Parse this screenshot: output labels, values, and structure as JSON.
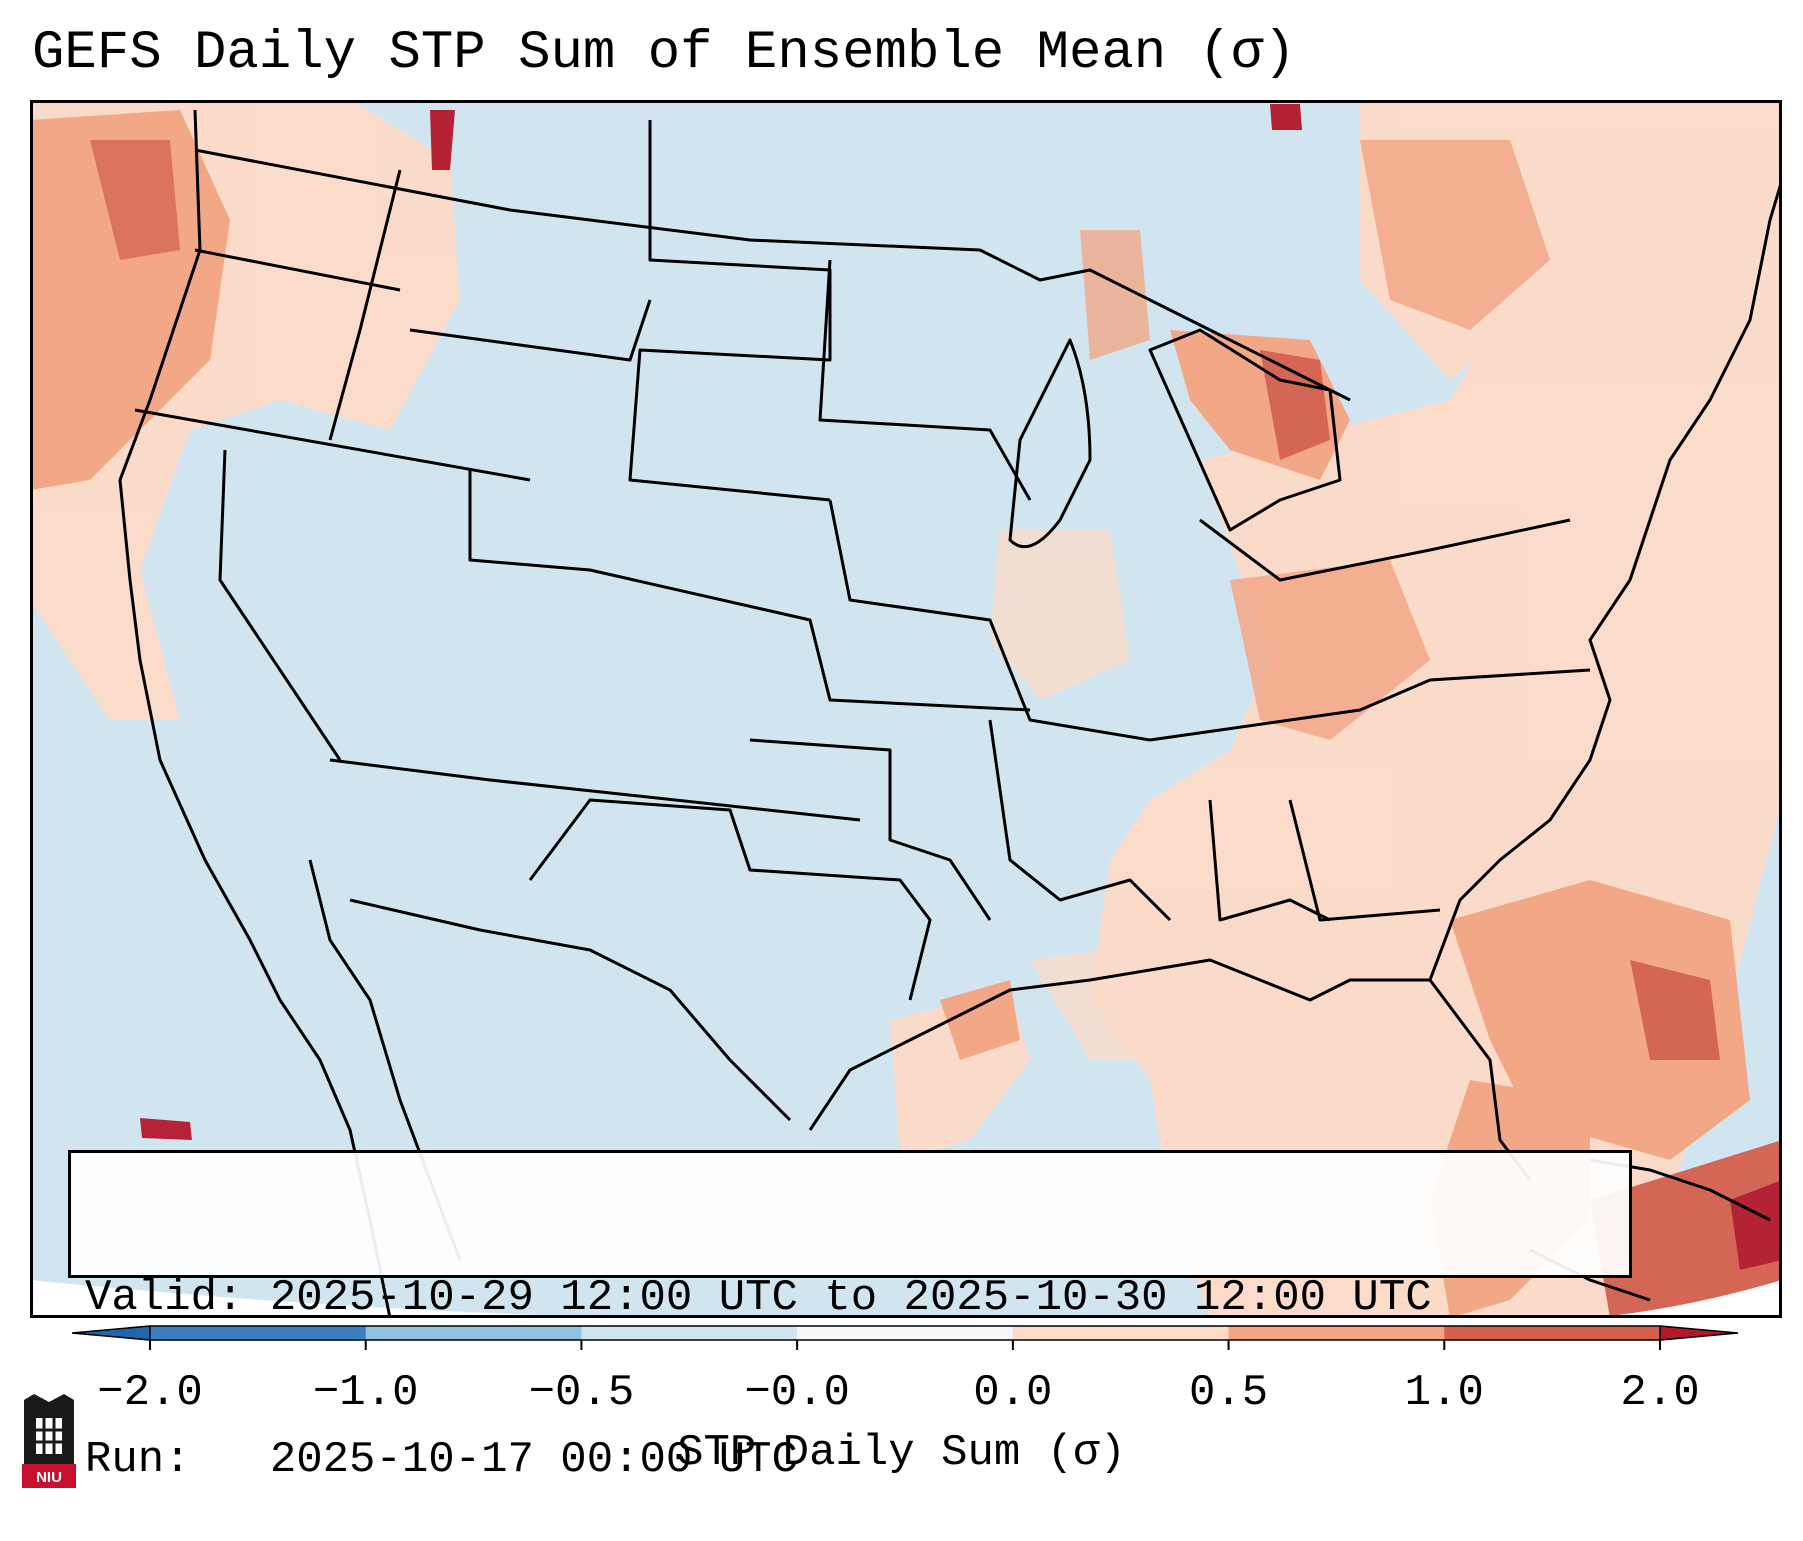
{
  "title": "GEFS Daily STP Sum of Ensemble Mean (σ)",
  "info": {
    "valid_label": "Valid:",
    "valid_value": "2025-10-29 12:00 UTC to 2025-10-30 12:00 UTC",
    "run_label": "Run:",
    "run_value": "2025-10-17 00:00 UTC"
  },
  "colorbar": {
    "label": "STP Daily Sum (σ)",
    "ticks": [
      "−2.0",
      "−1.0",
      "−0.5",
      "−0.0",
      "0.0",
      "0.5",
      "1.0",
      "2.0"
    ],
    "colors": [
      "#3a7fbf",
      "#91c2e1",
      "#d1e5f0",
      "#f7f7f7",
      "#fddbc7",
      "#f4a582",
      "#d6604d"
    ],
    "extend_low_color": "#2166ac",
    "extend_high_color": "#b2182b"
  },
  "map": {
    "background_color": "#d1e5f0",
    "projection": "Lambert Conformal - CONUS",
    "hotspots": [
      {
        "region": "Pacific Northwest coast",
        "level": "0.5 to 1.0"
      },
      {
        "region": "Great Lakes / Lower Michigan",
        "level": "0.5 to 1.0"
      },
      {
        "region": "Mid-Atlantic & Ohio Valley",
        "level": "0.0 to 0.5"
      },
      {
        "region": "Southeast US coast & Florida",
        "level": "0.5 to 1.0"
      },
      {
        "region": "Bahamas / Cuba",
        "level": "1.0 to 2.0"
      },
      {
        "region": "Texas Gulf coast",
        "level": "0.5 to 1.0"
      }
    ]
  },
  "logo": {
    "text": "NIU"
  }
}
